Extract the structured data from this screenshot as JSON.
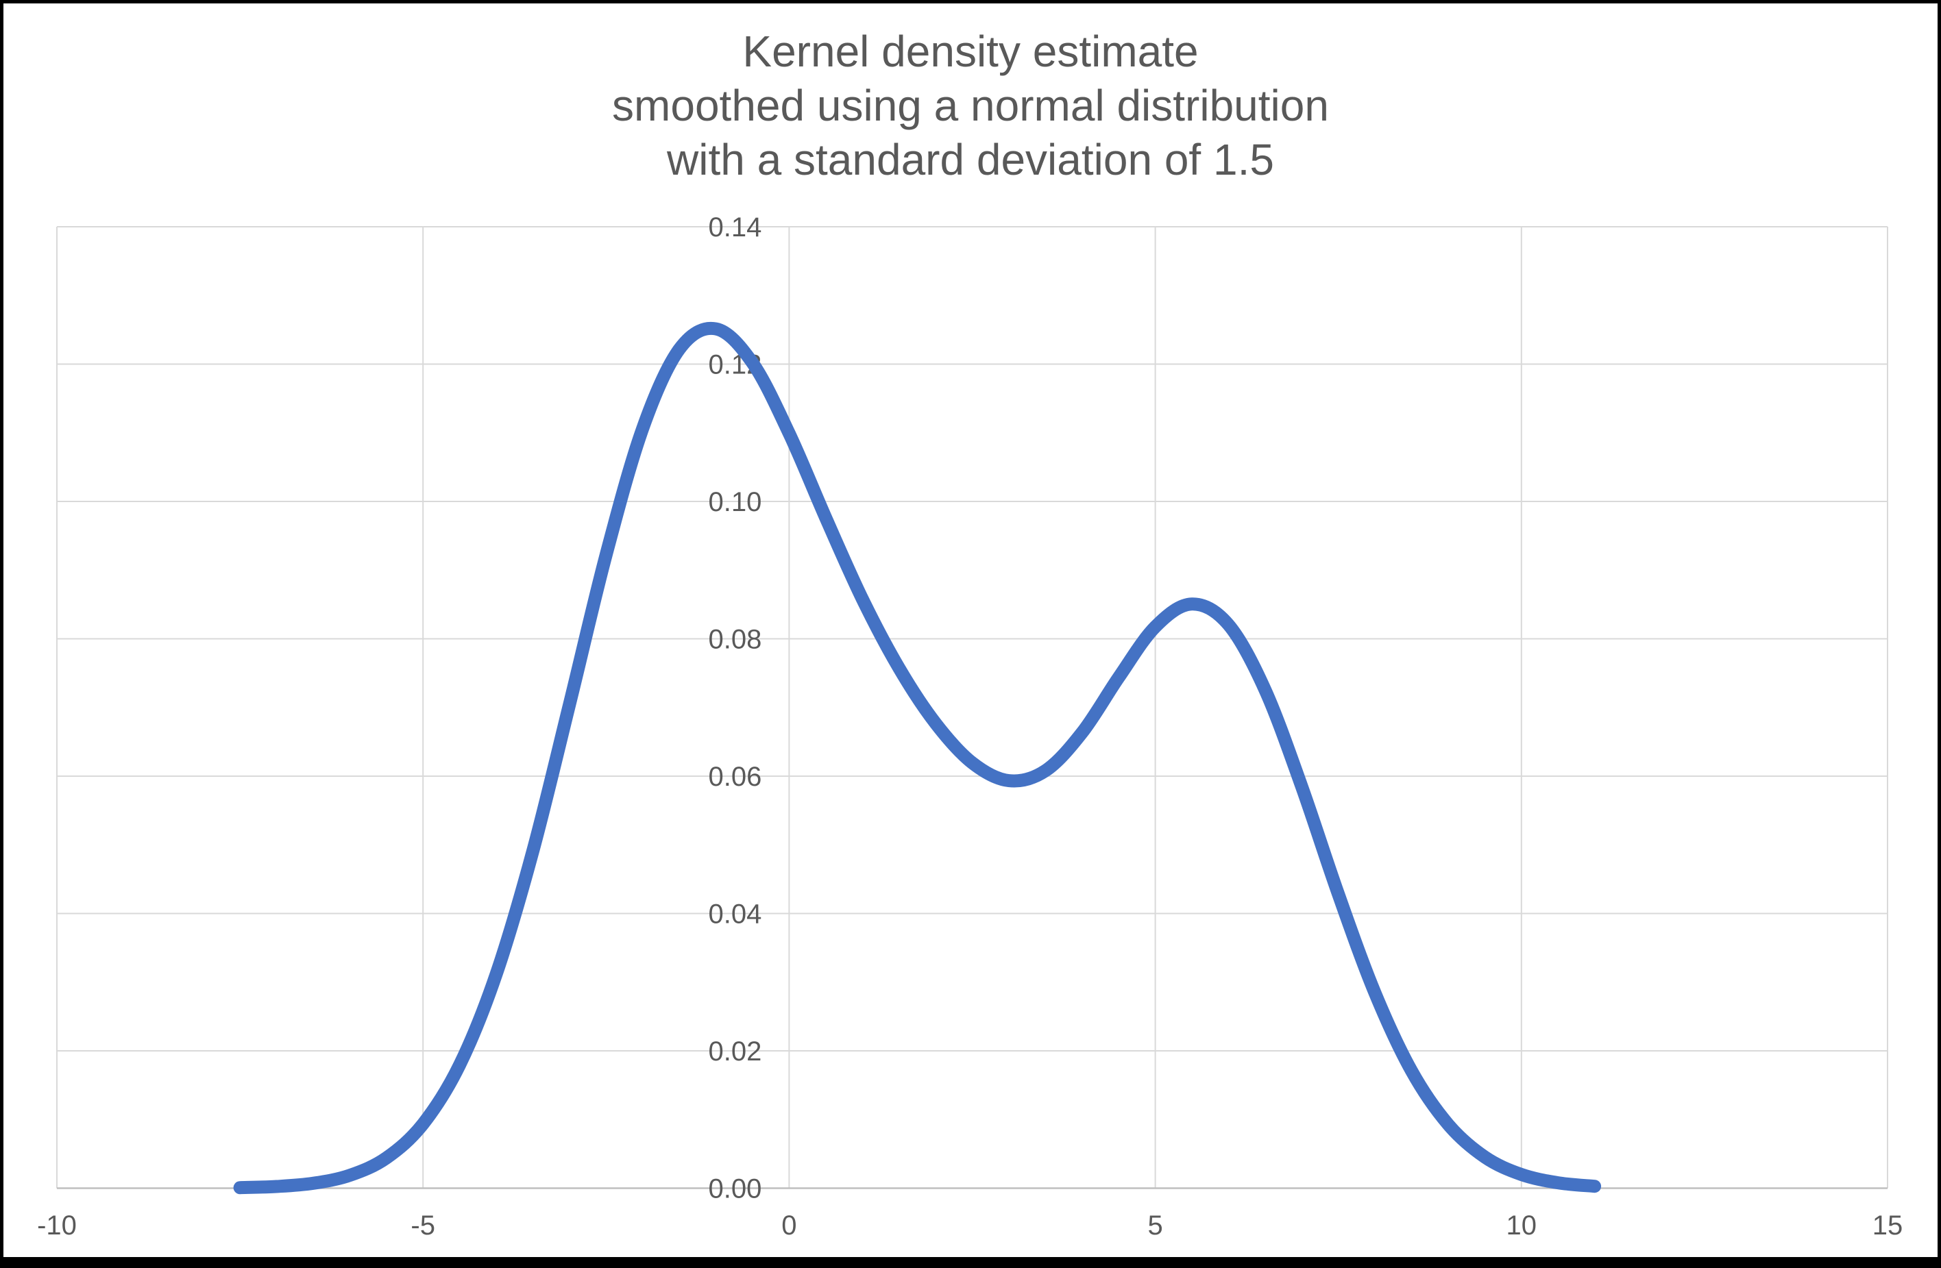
{
  "title": {
    "line1": "Kernel density estimate",
    "line2": "smoothed using a normal distribution",
    "line3": "with a standard deviation of 1.5"
  },
  "colors": {
    "curve": "#4472C4",
    "gridline": "#D9D9D9",
    "axis_line": "#BFBFBF",
    "text": "#595959",
    "background": "#FFFFFF",
    "frame": "#000000"
  },
  "chart_data": {
    "type": "line",
    "title": "Kernel density estimate smoothed using a normal distribution with a standard deviation of 1.5",
    "xlabel": "",
    "ylabel": "",
    "grid": true,
    "legend": "none",
    "xlim": [
      -10,
      15
    ],
    "ylim": [
      0,
      0.14
    ],
    "x_axis": {
      "min": -10,
      "max": 15,
      "ticks": [
        -10,
        -5,
        0,
        5,
        10,
        15
      ],
      "tick_labels": [
        "-10",
        "-5",
        "0",
        "5",
        "10",
        "15"
      ]
    },
    "y_axis": {
      "min": 0,
      "max": 0.14,
      "ticks": [
        0,
        0.02,
        0.04,
        0.06,
        0.08,
        0.1,
        0.12,
        0.14
      ],
      "tick_labels": [
        "0.00",
        "0.02",
        "0.04",
        "0.06",
        "0.08",
        "0.10",
        "0.12",
        "0.14"
      ]
    },
    "series": [
      {
        "name": "kernel density estimate",
        "color": "#4472C4",
        "x": [
          -7.5,
          -7.0,
          -6.5,
          -6.0,
          -5.5,
          -5.0,
          -4.5,
          -4.0,
          -3.5,
          -3.0,
          -2.5,
          -2.0,
          -1.5,
          -1.0,
          -0.5,
          0.0,
          0.5,
          1.0,
          1.5,
          2.0,
          2.5,
          3.0,
          3.5,
          4.0,
          4.5,
          5.0,
          5.5,
          6.0,
          6.5,
          7.0,
          7.5,
          8.0,
          8.5,
          9.0,
          9.5,
          10.0,
          10.5,
          11.0
        ],
        "y": [
          8e-05,
          0.00025,
          0.00072,
          0.00188,
          0.00441,
          0.00936,
          0.01795,
          0.03116,
          0.0491,
          0.07045,
          0.09223,
          0.11062,
          0.12216,
          0.12513,
          0.12017,
          0.10991,
          0.09761,
          0.08581,
          0.07574,
          0.06769,
          0.06195,
          0.05934,
          0.06079,
          0.06634,
          0.07437,
          0.08175,
          0.08506,
          0.08205,
          0.07254,
          0.05847,
          0.04282,
          0.02844,
          0.01708,
          0.00928,
          0.00454,
          0.002,
          0.00079,
          0.00028
        ]
      }
    ]
  }
}
